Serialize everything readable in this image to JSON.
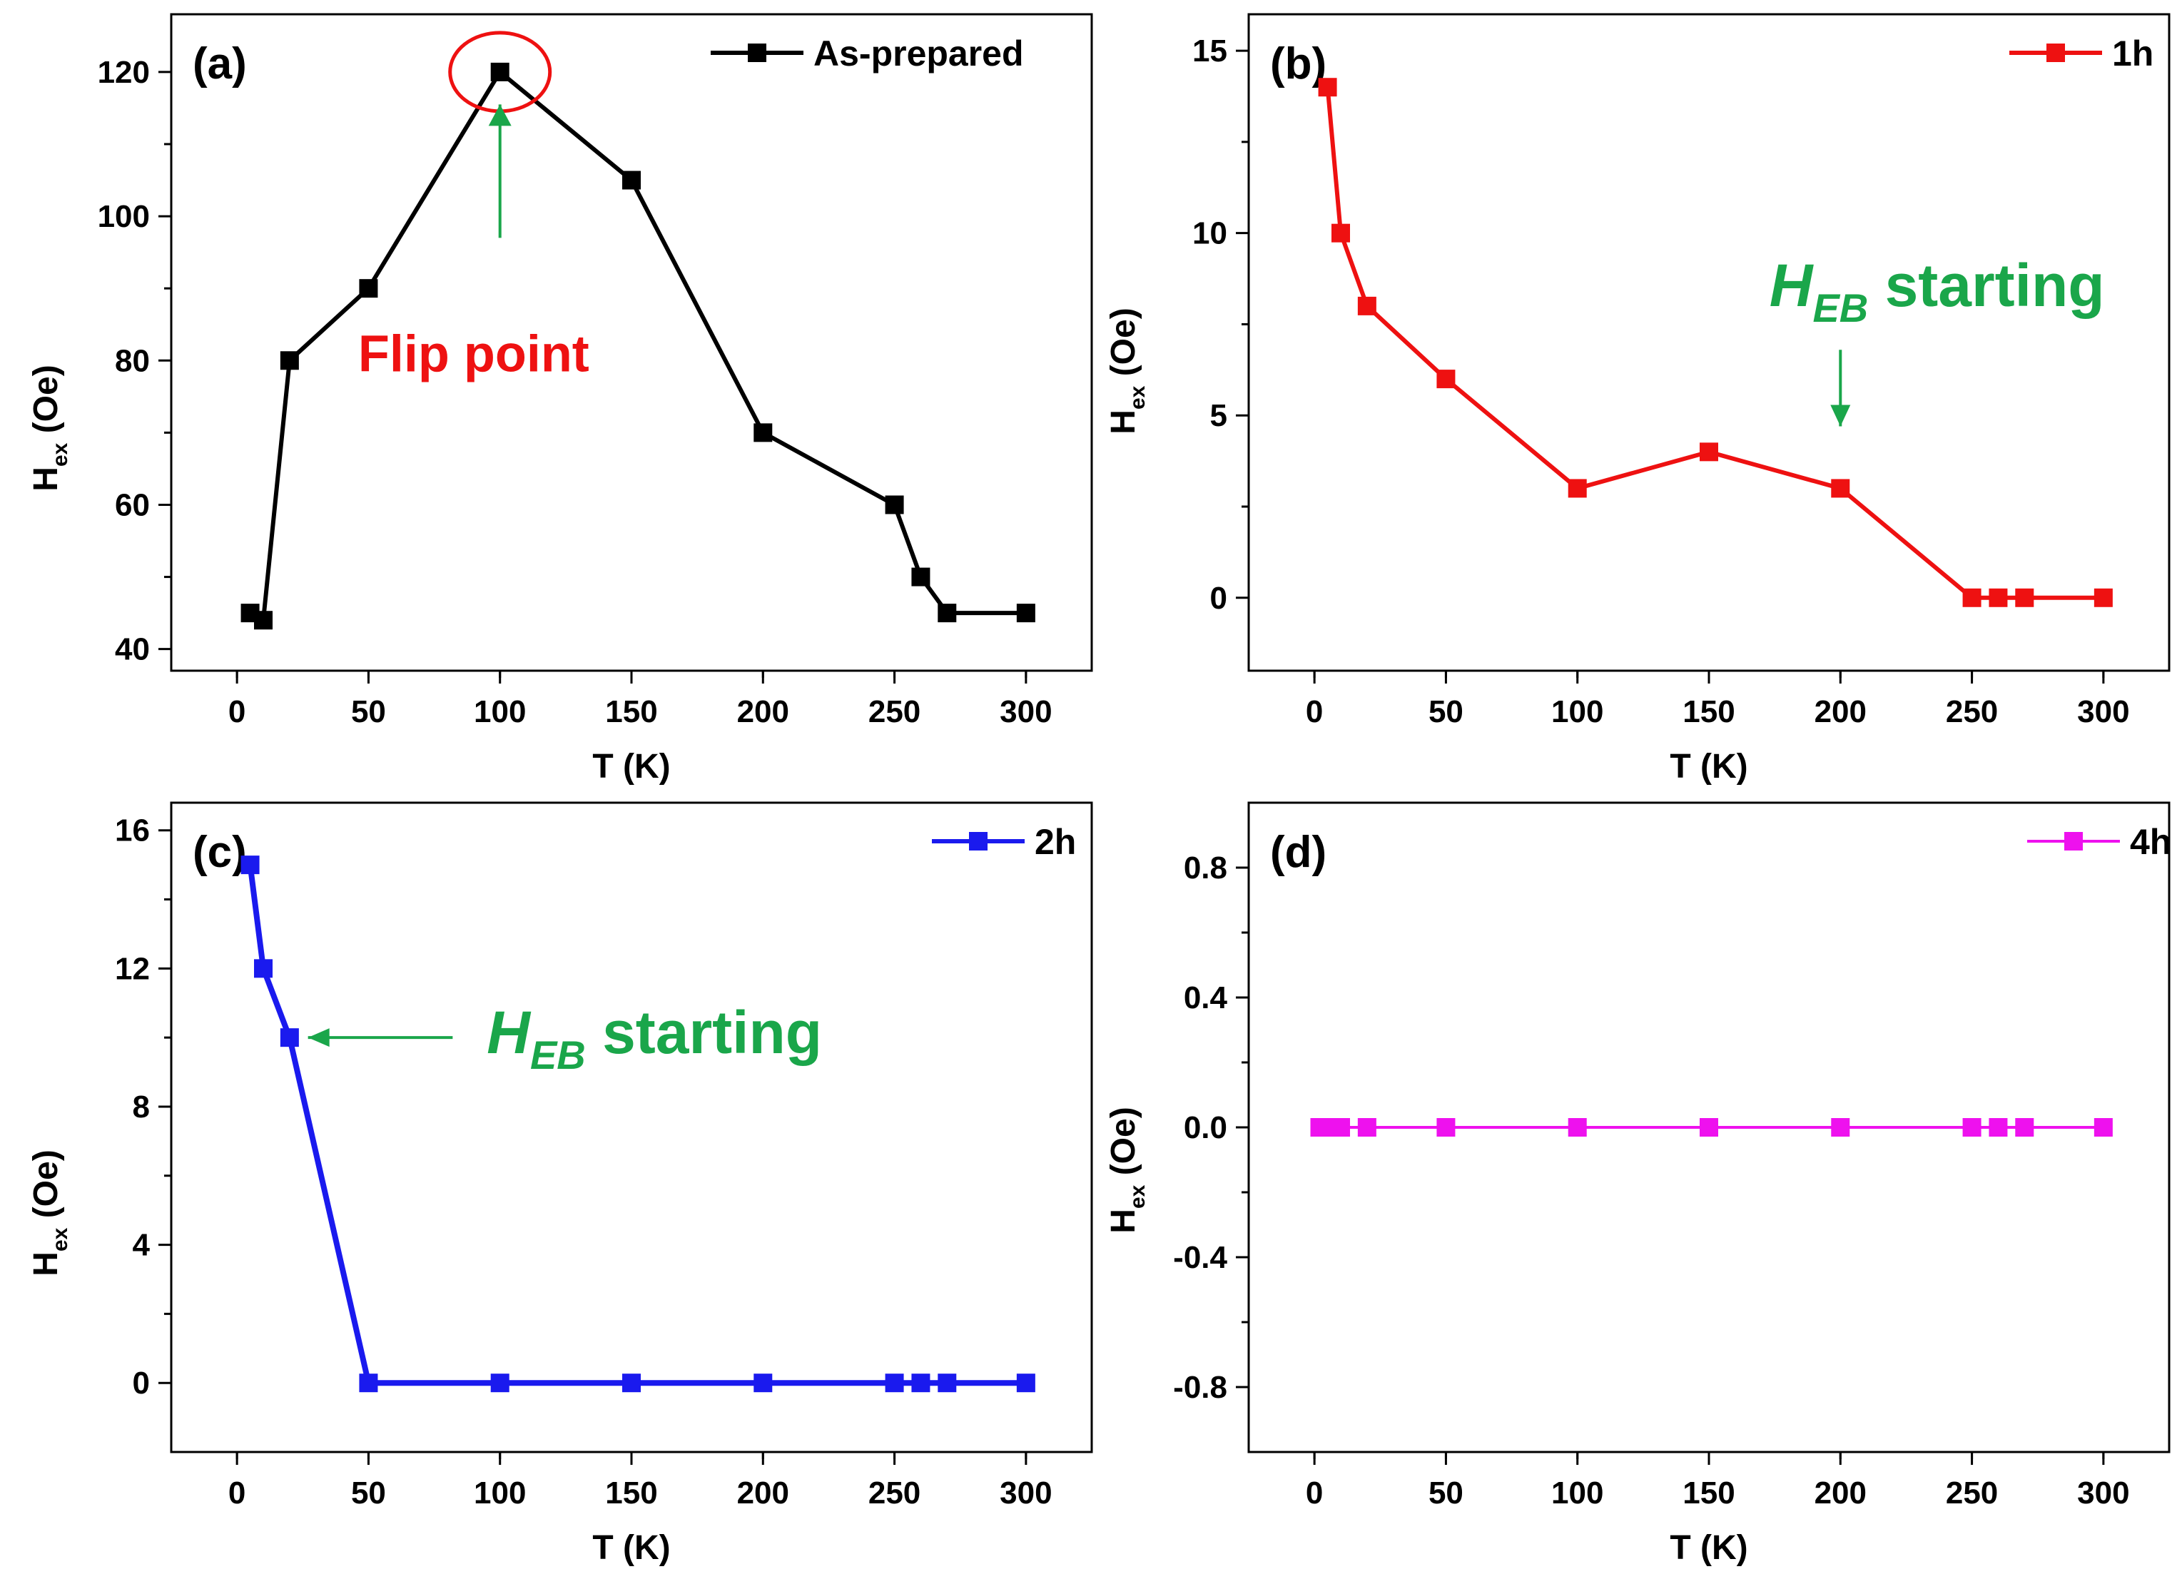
{
  "figure": {
    "panels": [
      {
        "panel_label": "(a)",
        "legend": "As-prepared",
        "color": "#000000",
        "xlabel": "T (K)",
        "ylabel_main": "H",
        "ylabel_sub": "ex",
        "ylabel_unit": " (Oe)",
        "xticks": [
          "0",
          "50",
          "100",
          "150",
          "200",
          "250",
          "300"
        ],
        "yticks": [
          "40",
          "60",
          "80",
          "100",
          "120"
        ],
        "annotations": [
          {
            "type": "text",
            "text": "Flip point",
            "color": "#ee1111"
          },
          {
            "type": "circle",
            "color": "#ee1111"
          },
          {
            "type": "arrow",
            "color": "#1aa64a"
          }
        ]
      },
      {
        "panel_label": "(b)",
        "legend": "1h",
        "color": "#ee1111",
        "xlabel": "T (K)",
        "ylabel_main": "H",
        "ylabel_sub": "ex",
        "ylabel_unit": " (Oe)",
        "xticks": [
          "0",
          "50",
          "100",
          "150",
          "200",
          "250",
          "300"
        ],
        "yticks": [
          "0",
          "5",
          "10",
          "15"
        ],
        "annotations": [
          {
            "type": "heb",
            "main": "H",
            "sub": "EB",
            "rest": " starting",
            "color": "#1aa64a"
          },
          {
            "type": "arrow",
            "color": "#1aa64a"
          }
        ]
      },
      {
        "panel_label": "(c)",
        "legend": "2h",
        "color": "#1a1aee",
        "xlabel": "T (K)",
        "ylabel_main": "H",
        "ylabel_sub": "ex",
        "ylabel_unit": " (Oe)",
        "xticks": [
          "0",
          "50",
          "100",
          "150",
          "200",
          "250",
          "300"
        ],
        "yticks": [
          "0",
          "4",
          "8",
          "12",
          "16"
        ],
        "annotations": [
          {
            "type": "heb",
            "main": "H",
            "sub": "EB",
            "rest": " starting",
            "color": "#1aa64a"
          },
          {
            "type": "arrow",
            "color": "#1aa64a"
          }
        ]
      },
      {
        "panel_label": "(d)",
        "legend": "4h",
        "color": "#ee11ee",
        "xlabel": "T (K)",
        "ylabel_main": "H",
        "ylabel_sub": "ex",
        "ylabel_unit": " (Oe)",
        "xticks": [
          "0",
          "50",
          "100",
          "150",
          "200",
          "250",
          "300"
        ],
        "yticks": [
          "-0.8",
          "-0.4",
          "0.0",
          "0.4",
          "0.8"
        ],
        "annotations": []
      }
    ]
  },
  "chart_data": [
    {
      "type": "line",
      "title": "(a)",
      "xlabel": "T (K)",
      "ylabel": "Hex (Oe)",
      "xlim": [
        -25,
        325
      ],
      "ylim": [
        37,
        128
      ],
      "series": [
        {
          "name": "As-prepared",
          "x": [
            5,
            10,
            20,
            50,
            100,
            150,
            200,
            250,
            260,
            270,
            300
          ],
          "y": [
            45,
            44,
            80,
            90,
            120,
            105,
            70,
            60,
            50,
            45,
            45
          ]
        }
      ],
      "annotations": [
        {
          "text": "Flip point",
          "x": 100,
          "y": 120
        }
      ]
    },
    {
      "type": "line",
      "title": "(b)",
      "xlabel": "T (K)",
      "ylabel": "Hex (Oe)",
      "xlim": [
        -25,
        325
      ],
      "ylim": [
        -2,
        16
      ],
      "series": [
        {
          "name": "1h",
          "x": [
            5,
            10,
            20,
            50,
            100,
            150,
            200,
            250,
            260,
            270,
            300
          ],
          "y": [
            14,
            10,
            8,
            6,
            3,
            4,
            3,
            0,
            0,
            0,
            0
          ]
        }
      ],
      "annotations": [
        {
          "text": "HEB starting",
          "x": 200,
          "y": 3
        }
      ]
    },
    {
      "type": "line",
      "title": "(c)",
      "xlabel": "T (K)",
      "ylabel": "Hex (Oe)",
      "xlim": [
        -25,
        325
      ],
      "ylim": [
        -2,
        16.8
      ],
      "series": [
        {
          "name": "2h",
          "x": [
            5,
            10,
            20,
            50,
            100,
            150,
            200,
            250,
            260,
            270,
            300
          ],
          "y": [
            15,
            12,
            10,
            0,
            0,
            0,
            0,
            0,
            0,
            0,
            0
          ]
        }
      ],
      "annotations": [
        {
          "text": "HEB starting",
          "x": 20,
          "y": 10
        }
      ]
    },
    {
      "type": "line",
      "title": "(d)",
      "xlabel": "T (K)",
      "ylabel": "Hex (Oe)",
      "xlim": [
        -25,
        325
      ],
      "ylim": [
        -1.0,
        1.0
      ],
      "series": [
        {
          "name": "4h",
          "x": [
            2,
            5,
            10,
            20,
            50,
            100,
            150,
            200,
            250,
            260,
            270,
            300
          ],
          "y": [
            0,
            0,
            0,
            0,
            0,
            0,
            0,
            0,
            0,
            0,
            0,
            0
          ]
        }
      ]
    }
  ]
}
